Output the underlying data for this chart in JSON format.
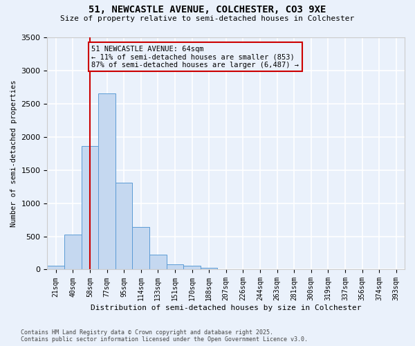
{
  "title_line1": "51, NEWCASTLE AVENUE, COLCHESTER, CO3 9XE",
  "title_line2": "Size of property relative to semi-detached houses in Colchester",
  "xlabel": "Distribution of semi-detached houses by size in Colchester",
  "ylabel": "Number of semi-detached properties",
  "footnote": "Contains HM Land Registry data © Crown copyright and database right 2025.\nContains public sector information licensed under the Open Government Licence v3.0.",
  "bar_labels": [
    "21sqm",
    "40sqm",
    "58sqm",
    "77sqm",
    "95sqm",
    "114sqm",
    "133sqm",
    "151sqm",
    "170sqm",
    "188sqm",
    "207sqm",
    "226sqm",
    "244sqm",
    "263sqm",
    "281sqm",
    "300sqm",
    "319sqm",
    "337sqm",
    "356sqm",
    "374sqm",
    "393sqm"
  ],
  "bar_values": [
    60,
    530,
    1860,
    2660,
    1310,
    640,
    220,
    80,
    60,
    30,
    0,
    0,
    0,
    0,
    0,
    0,
    0,
    0,
    0,
    0,
    0
  ],
  "bar_color": "#c5d8f0",
  "bar_edge_color": "#5b9bd5",
  "background_color": "#eaf1fb",
  "grid_color": "#ffffff",
  "vline_x": 2,
  "vline_color": "#cc0000",
  "annotation_title": "51 NEWCASTLE AVENUE: 64sqm",
  "annotation_line1": "← 11% of semi-detached houses are smaller (853)",
  "annotation_line2": "87% of semi-detached houses are larger (6,487) →",
  "annotation_box_color": "#cc0000",
  "ylim": [
    0,
    3500
  ],
  "yticks": [
    0,
    500,
    1000,
    1500,
    2000,
    2500,
    3000,
    3500
  ]
}
